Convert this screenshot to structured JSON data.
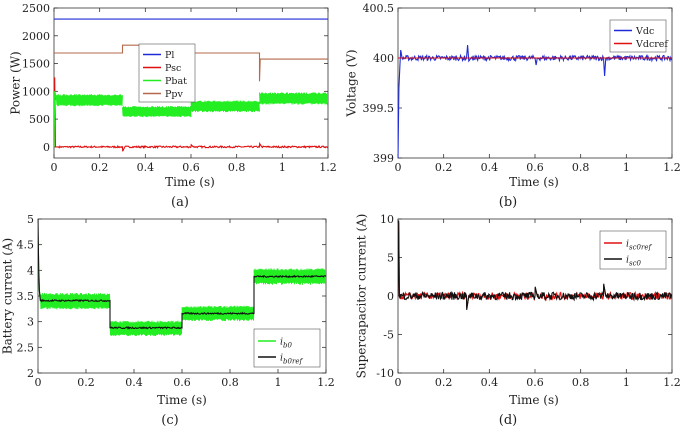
{
  "colors": {
    "blue": "#1f2bd6",
    "red": "#e01010",
    "green": "#22ee22",
    "brown": "#b5684a",
    "black": "#111111"
  },
  "chart_data": [
    {
      "id": "a",
      "type": "line",
      "caption": "(a)",
      "xlabel": "Time (s)",
      "ylabel": "Power (W)",
      "xlim": [
        0,
        1.2
      ],
      "ylim": [
        -200,
        2500
      ],
      "xticks": [
        0,
        0.2,
        0.4,
        0.6,
        0.8,
        1.0,
        1.2
      ],
      "xtick_labels": [
        "0",
        "0.2",
        "0.4",
        "0.6",
        "0.8",
        "1",
        "1.2"
      ],
      "yticks": [
        0,
        500,
        1000,
        1500,
        2000,
        2500
      ],
      "ytick_labels": [
        "0",
        "500",
        "1000",
        "1500",
        "2000",
        "2500"
      ],
      "legend_position": "top-center",
      "series": [
        {
          "name": "Pl",
          "label": "Pl",
          "color": "#1f2bd6",
          "x": [
            0,
            1.2
          ],
          "y": [
            2300,
            2300
          ]
        },
        {
          "name": "Psc",
          "label": "Psc",
          "color": "#e01010",
          "x": [
            0,
            0.003,
            0.006,
            0.02,
            0.3,
            0.301,
            0.31,
            0.6,
            0.601,
            0.61,
            0.9,
            0.901,
            0.91,
            1.2
          ],
          "y": [
            0,
            1250,
            0,
            0,
            0,
            -80,
            0,
            0,
            40,
            0,
            0,
            60,
            0,
            0
          ],
          "noise": 15
        },
        {
          "name": "Pbat",
          "label": "Pbat",
          "color": "#22ee22",
          "band": true,
          "segments": [
            {
              "x0": 0.01,
              "x1": 0.3,
              "center": 840,
              "half": 110
            },
            {
              "x0": 0.3,
              "x1": 0.6,
              "center": 635,
              "half": 100
            },
            {
              "x0": 0.6,
              "x1": 0.9,
              "center": 730,
              "half": 105
            },
            {
              "x0": 0.9,
              "x1": 1.2,
              "center": 870,
              "half": 110
            }
          ],
          "x": [
            0,
            0.003,
            0.006,
            0.01
          ],
          "y": [
            0,
            1000,
            950,
            840
          ]
        },
        {
          "name": "Ppv",
          "label": "Ppv",
          "color": "#b5684a",
          "x": [
            0,
            0.3,
            0.3,
            0.6,
            0.6,
            0.9,
            0.9,
            0.903,
            0.905,
            1.2
          ],
          "y": [
            1690,
            1690,
            1830,
            1830,
            1690,
            1690,
            1180,
            1580,
            1580,
            1580
          ]
        }
      ]
    },
    {
      "id": "b",
      "type": "line",
      "caption": "(b)",
      "xlabel": "Time (s)",
      "ylabel": "Voltage (V)",
      "xlim": [
        0,
        1.2
      ],
      "ylim": [
        399,
        400.5
      ],
      "xticks": [
        0,
        0.2,
        0.4,
        0.6,
        0.8,
        1.0,
        1.2
      ],
      "xtick_labels": [
        "0",
        "0.2",
        "0.4",
        "0.6",
        "0.8",
        "1",
        "1.2"
      ],
      "yticks": [
        399,
        399.5,
        400,
        400.5
      ],
      "ytick_labels": [
        "399",
        "399.5",
        "400",
        "400.5"
      ],
      "legend_position": "top-right",
      "series": [
        {
          "name": "Vdc",
          "label": "Vdc",
          "color": "#1f2bd6",
          "x": [
            0,
            0.004,
            0.008,
            0.012,
            0.018,
            0.3,
            0.305,
            0.31,
            0.32,
            0.6,
            0.605,
            0.61,
            0.9,
            0.905,
            0.91,
            1.2
          ],
          "y": [
            399,
            399.7,
            399.9,
            400.08,
            400,
            400,
            400.13,
            399.97,
            400,
            400,
            399.93,
            400,
            400,
            399.82,
            400,
            400
          ],
          "noise": 0.025
        },
        {
          "name": "Vdcref",
          "label": "Vdcref",
          "color": "#e01010",
          "x": [
            0,
            1.2
          ],
          "y": [
            400,
            400
          ]
        }
      ]
    },
    {
      "id": "c",
      "type": "line",
      "caption": "(c)",
      "xlabel": "Time (s)",
      "ylabel": "Battery current (A)",
      "xlim": [
        0,
        1.2
      ],
      "ylim": [
        2,
        5
      ],
      "xticks": [
        0,
        0.2,
        0.4,
        0.6,
        0.8,
        1.0,
        1.2
      ],
      "xtick_labels": [
        "0",
        "0.2",
        "0.4",
        "0.6",
        "0.8",
        "1",
        "1.2"
      ],
      "yticks": [
        2,
        2.5,
        3,
        3.5,
        4,
        4.5,
        5
      ],
      "ytick_labels": [
        "2",
        "2.5",
        "3",
        "3.5",
        "4",
        "4.5",
        "5"
      ],
      "legend_position": "bottom-right",
      "series": [
        {
          "name": "ib0",
          "label": "i",
          "sub": "b0",
          "color": "#22ee22",
          "band": true,
          "segments": [
            {
              "x0": 0.01,
              "x1": 0.3,
              "center": 3.4,
              "half": 0.16
            },
            {
              "x0": 0.3,
              "x1": 0.6,
              "center": 2.87,
              "half": 0.15
            },
            {
              "x0": 0.6,
              "x1": 0.9,
              "center": 3.16,
              "half": 0.15
            },
            {
              "x0": 0.9,
              "x1": 1.2,
              "center": 3.88,
              "half": 0.16
            }
          ],
          "x": [
            0,
            0.003,
            0.006,
            0.01
          ],
          "y": [
            4.6,
            4.1,
            3.6,
            3.4
          ]
        },
        {
          "name": "ib0ref",
          "label": "i",
          "sub": "b0ref",
          "color": "#111111",
          "x": [
            0,
            0.003,
            0.006,
            0.01,
            0.3,
            0.3,
            0.6,
            0.6,
            0.9,
            0.9,
            1.2
          ],
          "y": [
            5,
            4.0,
            3.6,
            3.41,
            3.41,
            2.88,
            2.88,
            3.16,
            3.16,
            3.88,
            3.88
          ],
          "noise": 0.015
        }
      ]
    },
    {
      "id": "d",
      "type": "line",
      "caption": "(d)",
      "xlabel": "Time (s)",
      "ylabel": "Supercapacitor current (A)",
      "xlim": [
        0,
        1.2
      ],
      "ylim": [
        -10,
        10
      ],
      "xticks": [
        0,
        0.2,
        0.4,
        0.6,
        0.8,
        1.0,
        1.2
      ],
      "xtick_labels": [
        "0",
        "0.2",
        "0.4",
        "0.6",
        "0.8",
        "1",
        "1.2"
      ],
      "yticks": [
        -10,
        -5,
        0,
        5,
        10
      ],
      "ytick_labels": [
        "-10",
        "-5",
        "0",
        "5",
        "10"
      ],
      "legend_position": "top-right",
      "series": [
        {
          "name": "isc0ref",
          "label": "i",
          "sub": "sc0ref",
          "color": "#e01010",
          "x": [
            0,
            0.003,
            0.006,
            0.3,
            0.301,
            0.31,
            0.6,
            0.601,
            0.61,
            0.9,
            0.901,
            0.91,
            1.2
          ],
          "y": [
            0,
            9.5,
            0,
            0,
            -1.6,
            0,
            0,
            1.0,
            0,
            0,
            1.4,
            0,
            0
          ],
          "noise": 0.45
        },
        {
          "name": "isc0",
          "label": "i",
          "sub": "sc0",
          "color": "#111111",
          "x": [
            0,
            0.003,
            0.006,
            0.3,
            0.301,
            0.31,
            0.6,
            0.601,
            0.61,
            0.9,
            0.901,
            0.91,
            1.2
          ],
          "y": [
            0,
            9.8,
            0,
            0,
            -1.8,
            0,
            0,
            1.2,
            0,
            0,
            1.6,
            0,
            0
          ],
          "noise": 0.5
        }
      ]
    }
  ]
}
